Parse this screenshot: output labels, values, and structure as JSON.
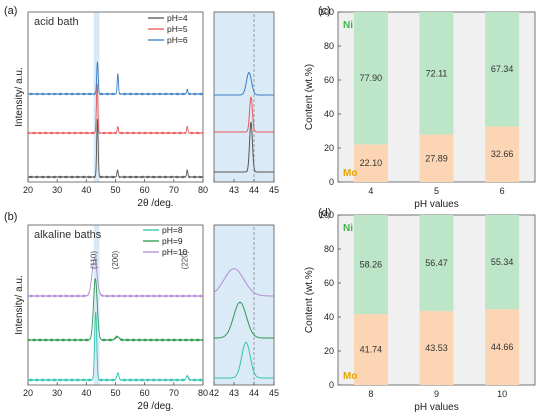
{
  "panel_labels": [
    "(a)",
    "(b)",
    "(c)",
    "(d)"
  ],
  "chart_data": [
    {
      "type": "line",
      "panel": "(a)",
      "annotation": "acid bath",
      "xlabel": "2θ /deg.",
      "ylabel": "Intensity/ a.u.",
      "xlim": [
        20,
        80
      ],
      "xticks": [
        20,
        30,
        40,
        50,
        60,
        70,
        80
      ],
      "zoom_xlim": [
        42,
        45
      ],
      "zoom_xticks": [
        42,
        43,
        44,
        45
      ],
      "zoom_xtick_labels": [
        "",
        "43",
        "44",
        "45"
      ],
      "reference_line_x": 44,
      "highlight_band": [
        42.5,
        44.5
      ],
      "series": [
        {
          "name": "pH=4",
          "color": "#555555",
          "peaks": [
            {
              "x": 43.8,
              "h": 1.0,
              "w": 0.35
            },
            {
              "x": 50.7,
              "h": 0.12,
              "w": 0.3
            },
            {
              "x": 74.6,
              "h": 0.12,
              "w": 0.3
            }
          ],
          "zoom_peak": {
            "x": 43.85,
            "h": 1.0,
            "w": 0.1
          }
        },
        {
          "name": "pH=5",
          "color": "#e8585a",
          "peaks": [
            {
              "x": 43.7,
              "h": 0.85,
              "w": 0.35
            },
            {
              "x": 50.8,
              "h": 0.11,
              "w": 0.3
            },
            {
              "x": 74.6,
              "h": 0.11,
              "w": 0.3
            }
          ],
          "zoom_peak": {
            "x": 43.85,
            "h": 0.7,
            "w": 0.1
          }
        },
        {
          "name": "pH=6",
          "color": "#3a7fc1",
          "peaks": [
            {
              "x": 43.8,
              "h": 0.55,
              "w": 0.35
            },
            {
              "x": 50.8,
              "h": 0.35,
              "w": 0.3
            },
            {
              "x": 74.6,
              "h": 0.08,
              "w": 0.3
            }
          ],
          "zoom_peak": {
            "x": 43.75,
            "h": 0.45,
            "w": 0.18
          }
        }
      ]
    },
    {
      "type": "line",
      "panel": "(b)",
      "annotation": "alkaline baths",
      "xlabel": "2θ /deg.",
      "ylabel": "Intensity/ a.u.",
      "xlim": [
        20,
        80
      ],
      "xticks": [
        20,
        30,
        40,
        50,
        60,
        70,
        80
      ],
      "zoom_xlim": [
        42,
        45
      ],
      "zoom_xticks": [
        42,
        43,
        44,
        45
      ],
      "zoom_xtick_labels": [
        "42",
        "43",
        "44",
        "45"
      ],
      "reference_line_x": 44,
      "highlight_band": [
        42.5,
        44.5
      ],
      "peak_labels": [
        {
          "x": 43.5,
          "text": "(110)"
        },
        {
          "x": 50.8,
          "text": "(200)"
        },
        {
          "x": 74.6,
          "text": "(220)"
        }
      ],
      "series": [
        {
          "name": "pH=8",
          "color": "#2ec4b0",
          "peaks": [
            {
              "x": 43.2,
              "h": 1.0,
              "w": 0.5
            },
            {
              "x": 50.8,
              "h": 0.1,
              "w": 0.5
            },
            {
              "x": 74.6,
              "h": 0.06,
              "w": 0.5
            }
          ],
          "zoom_peak": {
            "x": 43.6,
            "h": 0.85,
            "w": 0.3
          }
        },
        {
          "name": "pH=9",
          "color": "#2a9a4c",
          "peaks": [
            {
              "x": 43.1,
              "h": 0.9,
              "w": 0.9
            },
            {
              "x": 50.6,
              "h": 0.05,
              "w": 0.9
            }
          ],
          "zoom_peak": {
            "x": 43.3,
            "h": 0.85,
            "w": 0.45
          }
        },
        {
          "name": "pH=10",
          "color": "#b58bd6",
          "peaks": [
            {
              "x": 42.8,
              "h": 0.55,
              "w": 1.2
            }
          ],
          "zoom_peak": {
            "x": 43.0,
            "h": 0.65,
            "w": 0.7
          }
        }
      ]
    },
    {
      "type": "bar",
      "stacked": true,
      "panel": "(c)",
      "xlabel": "pH values",
      "ylabel": "Content (wt.%)",
      "ylim": [
        0,
        100
      ],
      "yticks": [
        0,
        20,
        40,
        60,
        80,
        100
      ],
      "categories": [
        "4",
        "5",
        "6"
      ],
      "series": [
        {
          "name": "Mo",
          "values": [
            22.1,
            27.89,
            32.66
          ],
          "labels": [
            "22.10",
            "27.89",
            "32.66"
          ],
          "color": "#fcd5b5",
          "label_color": "#e8a300"
        },
        {
          "name": "Ni",
          "values": [
            77.9,
            72.11,
            67.34
          ],
          "labels": [
            "77.90",
            "72.11",
            "67.34"
          ],
          "color": "#bde5c8",
          "label_color": "#3fb24a"
        }
      ]
    },
    {
      "type": "bar",
      "stacked": true,
      "panel": "(d)",
      "xlabel": "pH values",
      "ylabel": "Content (wt.%)",
      "ylim": [
        0,
        100
      ],
      "yticks": [
        0,
        20,
        40,
        60,
        80,
        100
      ],
      "categories": [
        "8",
        "9",
        "10"
      ],
      "series": [
        {
          "name": "Mo",
          "values": [
            41.74,
            43.53,
            44.66
          ],
          "labels": [
            "41.74",
            "43.53",
            "44.66"
          ],
          "color": "#fcd5b5",
          "label_color": "#e8a300"
        },
        {
          "name": "Ni",
          "values": [
            58.26,
            56.47,
            55.34
          ],
          "labels": [
            "58.26",
            "56.47",
            "55.34"
          ],
          "color": "#bde5c8",
          "label_color": "#3fb24a"
        }
      ]
    }
  ]
}
